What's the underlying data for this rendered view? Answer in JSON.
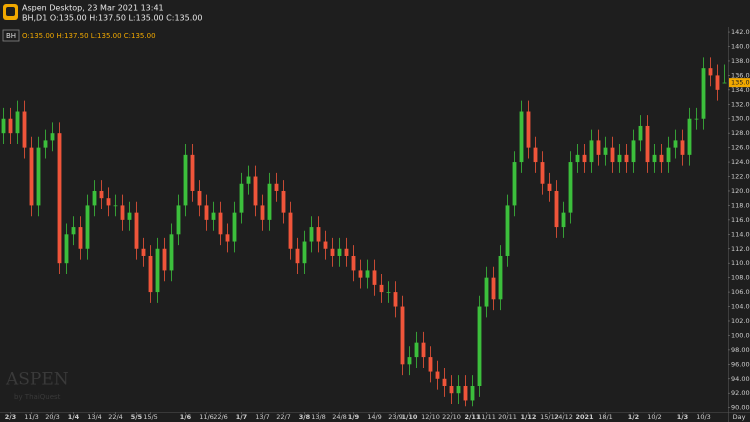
{
  "chart_data": {
    "type": "candlestick",
    "title": "Aspen Desktop, 23 Mar 2021 13:41",
    "subtitle": "BH,D1 O:135.00 H:137.50 L:135.00 C:135.00",
    "symbol": "BH",
    "ohlc_text": "O:135.00 H:137.50 L:135.00 C:135.00",
    "period_label": "Day",
    "up_color": "#3cbf3c",
    "down_color": "#f0553a",
    "grid": false,
    "xlim": [
      -0.5,
      103.5
    ],
    "ylim": [
      89.4,
      142.7
    ],
    "open": [
      128,
      130,
      128,
      131,
      126,
      118,
      126,
      127,
      128,
      110,
      114,
      115,
      112,
      118,
      120,
      119,
      118,
      118,
      116,
      117,
      112,
      111,
      106,
      112,
      109,
      114,
      118,
      125,
      120,
      118,
      116,
      117,
      114,
      113,
      117,
      121,
      122,
      118,
      116,
      121,
      120,
      117,
      112,
      110,
      113,
      115,
      113,
      112,
      111,
      112,
      111,
      109,
      108,
      109,
      107,
      106,
      106,
      104,
      96,
      97,
      99,
      97,
      95,
      94,
      93,
      92,
      93,
      91,
      93,
      104,
      108,
      105,
      111,
      118,
      124,
      131,
      126,
      124,
      121,
      120,
      115,
      117,
      124,
      125,
      124,
      127,
      125,
      126,
      124,
      125,
      124,
      127,
      129,
      124,
      125,
      124,
      126,
      127,
      125,
      130,
      130,
      137,
      136,
      135
    ],
    "high": [
      131.5,
      131.5,
      132.5,
      132.5,
      127.5,
      127.5,
      128.5,
      129.5,
      129.5,
      115.5,
      116.5,
      116.5,
      119.5,
      121.5,
      121.5,
      120.5,
      119.5,
      119.5,
      118.5,
      118.5,
      113.5,
      112.5,
      113.5,
      113.5,
      115.5,
      119.5,
      126.5,
      126.5,
      121.5,
      119.5,
      118.5,
      118.5,
      115.5,
      118.5,
      122.5,
      123.5,
      123.5,
      119.5,
      122.5,
      122.5,
      121.5,
      118.5,
      113.5,
      114.5,
      116.5,
      116.5,
      114.5,
      113.5,
      113.5,
      113.5,
      112.5,
      110.5,
      110.5,
      110.5,
      108.5,
      107.5,
      107.5,
      105.5,
      98.5,
      100.5,
      100.5,
      98.5,
      96.5,
      95.5,
      94.5,
      94.5,
      94.5,
      94.5,
      105.5,
      109.5,
      109.5,
      112.5,
      119.5,
      125.5,
      132.5,
      132.5,
      127.5,
      125.5,
      122.5,
      121.5,
      118.5,
      125.5,
      126.5,
      126.5,
      128.5,
      128.5,
      127.5,
      127.5,
      126.5,
      126.5,
      128.5,
      130.5,
      130.5,
      126.5,
      126.5,
      127.5,
      128.5,
      128.5,
      131.5,
      131.5,
      138.5,
      138.5,
      137.5,
      137.5
    ],
    "low": [
      126.5,
      126.5,
      126.5,
      124.5,
      116.5,
      116.5,
      124.5,
      125.5,
      108.5,
      108.5,
      112.5,
      110.5,
      110.5,
      116.5,
      117.5,
      116.5,
      116.5,
      114.5,
      114.5,
      110.5,
      109.5,
      104.5,
      104.5,
      107.5,
      107.5,
      112.5,
      116.5,
      118.5,
      116.5,
      114.5,
      114.5,
      112.5,
      111.5,
      111.5,
      115.5,
      119.5,
      116.5,
      114.5,
      114.5,
      118.5,
      115.5,
      110.5,
      108.5,
      108.5,
      111.5,
      111.5,
      110.5,
      109.5,
      109.5,
      109.5,
      107.5,
      106.5,
      106.5,
      105.5,
      104.5,
      104.5,
      102.5,
      94.5,
      94.5,
      95.5,
      95.5,
      93.5,
      92.5,
      91.5,
      90.5,
      90.5,
      90.2,
      90.2,
      91.5,
      102.5,
      103.5,
      103.5,
      109.5,
      116.5,
      122.5,
      124.5,
      122.5,
      119.5,
      118.5,
      113.5,
      113.5,
      115.5,
      122.5,
      122.5,
      122.5,
      123.5,
      123.5,
      122.5,
      122.5,
      122.5,
      122.5,
      125.5,
      122.5,
      122.5,
      122.5,
      122.5,
      124.5,
      123.5,
      123.5,
      128.5,
      128.5,
      134.5,
      132.5,
      135
    ],
    "close": [
      130,
      128,
      131,
      126,
      118,
      126,
      127,
      128,
      110,
      114,
      115,
      112,
      118,
      120,
      119,
      118,
      118,
      116,
      117,
      112,
      111,
      106,
      112,
      109,
      114,
      118,
      125,
      120,
      118,
      116,
      117,
      114,
      113,
      117,
      121,
      122,
      118,
      116,
      121,
      120,
      117,
      112,
      110,
      113,
      115,
      113,
      112,
      111,
      112,
      111,
      109,
      108,
      109,
      107,
      106,
      106,
      104,
      96,
      97,
      99,
      97,
      95,
      94,
      93,
      92,
      93,
      91,
      93,
      104,
      108,
      105,
      111,
      118,
      124,
      131,
      126,
      124,
      121,
      120,
      115,
      117,
      124,
      125,
      124,
      127,
      125,
      126,
      124,
      125,
      124,
      127,
      129,
      124,
      125,
      124,
      126,
      127,
      125,
      130,
      130,
      137,
      136,
      134,
      135
    ],
    "last_price": {
      "value": 135,
      "label": "135.00"
    },
    "yticks": [
      {
        "value": 90,
        "label": "90.00"
      },
      {
        "value": 92,
        "label": "92.00"
      },
      {
        "value": 94,
        "label": "94.00"
      },
      {
        "value": 96,
        "label": "96.00"
      },
      {
        "value": 98,
        "label": "98.00"
      },
      {
        "value": 100,
        "label": "100.00"
      },
      {
        "value": 102,
        "label": "102.00"
      },
      {
        "value": 104,
        "label": "104.00"
      },
      {
        "value": 106,
        "label": "106.00"
      },
      {
        "value": 108,
        "label": "108.00"
      },
      {
        "value": 110,
        "label": "110.00"
      },
      {
        "value": 112,
        "label": "112.00"
      },
      {
        "value": 114,
        "label": "114.00"
      },
      {
        "value": 116,
        "label": "116.00"
      },
      {
        "value": 118,
        "label": "118.00"
      },
      {
        "value": 120,
        "label": "120.00"
      },
      {
        "value": 122,
        "label": "122.00"
      },
      {
        "value": 124,
        "label": "124.00"
      },
      {
        "value": 126,
        "label": "126.00"
      },
      {
        "value": 128,
        "label": "128.00"
      },
      {
        "value": 130,
        "label": "130.00"
      },
      {
        "value": 132,
        "label": "132.00"
      },
      {
        "value": 134,
        "label": "134.00"
      },
      {
        "value": 136,
        "label": "136.00"
      },
      {
        "value": 138,
        "label": "138.00"
      },
      {
        "value": 140,
        "label": "140.00"
      },
      {
        "value": 142,
        "label": "142.00"
      }
    ],
    "xticks": [
      {
        "value": 1,
        "label": "2/3",
        "bold": true
      },
      {
        "value": 4,
        "label": "11/3"
      },
      {
        "value": 7,
        "label": "20/3"
      },
      {
        "value": 10,
        "label": "1/4",
        "bold": true
      },
      {
        "value": 13,
        "label": "13/4"
      },
      {
        "value": 16,
        "label": "22/4"
      },
      {
        "value": 19,
        "label": "5/5",
        "bold": true
      },
      {
        "value": 21,
        "label": "15/5"
      },
      {
        "value": 26,
        "label": "1/6",
        "bold": true
      },
      {
        "value": 29,
        "label": "11/6"
      },
      {
        "value": 31,
        "label": "22/6"
      },
      {
        "value": 34,
        "label": "1/7",
        "bold": true
      },
      {
        "value": 37,
        "label": "13/7"
      },
      {
        "value": 40,
        "label": "22/7"
      },
      {
        "value": 43,
        "label": "3/8",
        "bold": true
      },
      {
        "value": 45,
        "label": "13/8"
      },
      {
        "value": 48,
        "label": "24/8"
      },
      {
        "value": 50,
        "label": "1/9",
        "bold": true
      },
      {
        "value": 53,
        "label": "14/9"
      },
      {
        "value": 56,
        "label": "23/9"
      },
      {
        "value": 58,
        "label": "1/10",
        "bold": true
      },
      {
        "value": 61,
        "label": "12/10"
      },
      {
        "value": 64,
        "label": "22/10"
      },
      {
        "value": 67,
        "label": "2/11",
        "bold": true
      },
      {
        "value": 69,
        "label": "11/11"
      },
      {
        "value": 72,
        "label": "20/11"
      },
      {
        "value": 75,
        "label": "1/12",
        "bold": true
      },
      {
        "value": 78,
        "label": "15/12"
      },
      {
        "value": 80,
        "label": "24/12"
      },
      {
        "value": 83,
        "label": "2021",
        "bold": true
      },
      {
        "value": 86,
        "label": "18/1"
      },
      {
        "value": 90,
        "label": "1/2",
        "bold": true
      },
      {
        "value": 93,
        "label": "10/2"
      },
      {
        "value": 97,
        "label": "1/3",
        "bold": true
      },
      {
        "value": 100,
        "label": "10/3"
      }
    ]
  },
  "watermark": {
    "brand": "ASPEN",
    "by": "by ThaiQuest"
  }
}
